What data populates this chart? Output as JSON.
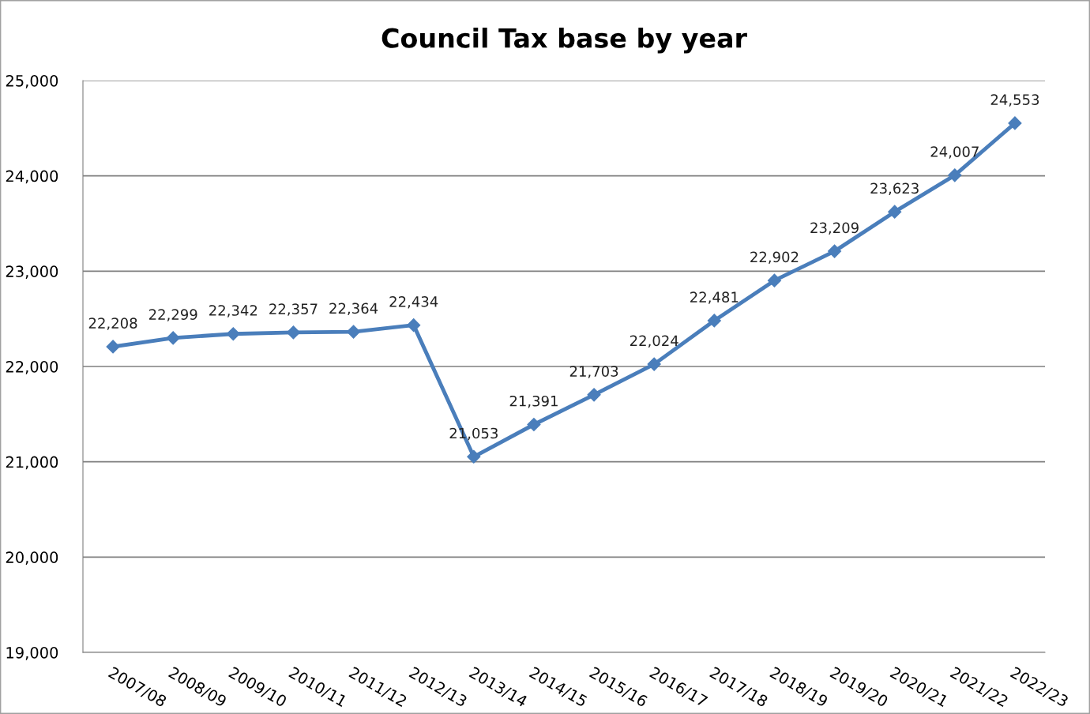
{
  "chart_data": {
    "type": "line",
    "title": "Council Tax base by year",
    "categories": [
      "2007/08",
      "2008/09",
      "2009/10",
      "2010/11",
      "2011/12",
      "2012/13",
      "2013/14",
      "2014/15",
      "2015/16",
      "2016/17",
      "2017/18",
      "2018/19",
      "2019/20",
      "2020/21",
      "2021/22",
      "2022/23"
    ],
    "series": [
      {
        "color": "#4a7ebb",
        "values": [
          22208,
          22299,
          22342,
          22357,
          22364,
          22434,
          21053,
          21391,
          21703,
          22024,
          22481,
          22902,
          23209,
          23623,
          24007,
          24553
        ],
        "value_labels": [
          "22,208",
          "22,299",
          "22,342",
          "22,357",
          "22,364",
          "22,434",
          "21,053",
          "21,391",
          "21,703",
          "22,024",
          "22,481",
          "22,902",
          "23,209",
          "23,623",
          "24,007",
          "24,553"
        ]
      }
    ],
    "ylim": [
      19000,
      25000
    ],
    "yticks": [
      {
        "value": 19000,
        "label": "19,000"
      },
      {
        "value": 20000,
        "label": "20,000"
      },
      {
        "value": 21000,
        "label": "21,000"
      },
      {
        "value": 22000,
        "label": "22,000"
      },
      {
        "value": 23000,
        "label": "23,000"
      },
      {
        "value": 24000,
        "label": "24,000"
      },
      {
        "value": 25000,
        "label": "25,000"
      }
    ],
    "grid": "y",
    "marker": "diamond",
    "line_style": "solid"
  }
}
